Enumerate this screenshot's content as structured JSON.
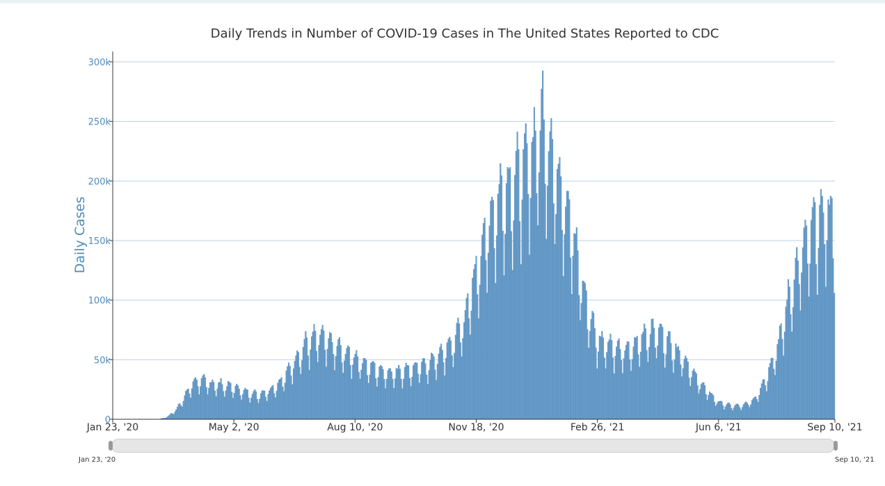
{
  "chart_data": {
    "type": "bar",
    "title": "Daily Trends in Number of COVID-19 Cases in The United States Reported to CDC",
    "ylabel": "Daily Cases",
    "xlabel": "",
    "ylim": [
      0,
      300000
    ],
    "x_start_date": "2020-01-23",
    "x_end_date": "2021-09-10",
    "yticks": [
      {
        "value": 0,
        "label": "0"
      },
      {
        "value": 50000,
        "label": "50k"
      },
      {
        "value": 100000,
        "label": "100k"
      },
      {
        "value": 150000,
        "label": "150k"
      },
      {
        "value": 200000,
        "label": "200k"
      },
      {
        "value": 250000,
        "label": "250k"
      },
      {
        "value": 300000,
        "label": "300k"
      }
    ],
    "xticks": [
      {
        "day": 0,
        "label": "Jan 23, '20"
      },
      {
        "day": 100,
        "label": "May 2, '20"
      },
      {
        "day": 200,
        "label": "Aug 10, '20"
      },
      {
        "day": 300,
        "label": "Nov 18, '20"
      },
      {
        "day": 400,
        "label": "Feb 26, '21"
      },
      {
        "day": 500,
        "label": "Jun 6, '21"
      },
      {
        "day": 596,
        "label": "Sep 10, '21"
      }
    ],
    "trend_anchors": [
      [
        0,
        0
      ],
      [
        38,
        0
      ],
      [
        45,
        2000
      ],
      [
        52,
        8000
      ],
      [
        60,
        20000
      ],
      [
        66,
        30000
      ],
      [
        72,
        32000
      ],
      [
        80,
        29000
      ],
      [
        90,
        28000
      ],
      [
        100,
        26000
      ],
      [
        110,
        22000
      ],
      [
        120,
        20000
      ],
      [
        130,
        24000
      ],
      [
        140,
        32000
      ],
      [
        150,
        48000
      ],
      [
        160,
        62000
      ],
      [
        170,
        68000
      ],
      [
        180,
        62000
      ],
      [
        190,
        55000
      ],
      [
        200,
        50000
      ],
      [
        210,
        44000
      ],
      [
        220,
        40000
      ],
      [
        230,
        38000
      ],
      [
        240,
        40000
      ],
      [
        250,
        42000
      ],
      [
        260,
        45000
      ],
      [
        270,
        52000
      ],
      [
        280,
        62000
      ],
      [
        290,
        80000
      ],
      [
        300,
        120000
      ],
      [
        310,
        158000
      ],
      [
        320,
        182000
      ],
      [
        330,
        192000
      ],
      [
        340,
        205000
      ],
      [
        350,
        225000
      ],
      [
        355,
        245000
      ],
      [
        360,
        222000
      ],
      [
        370,
        192000
      ],
      [
        380,
        150000
      ],
      [
        390,
        98000
      ],
      [
        400,
        65000
      ],
      [
        410,
        62000
      ],
      [
        420,
        55000
      ],
      [
        430,
        58000
      ],
      [
        440,
        70000
      ],
      [
        450,
        72000
      ],
      [
        460,
        62000
      ],
      [
        470,
        52000
      ],
      [
        480,
        36000
      ],
      [
        490,
        24000
      ],
      [
        500,
        14000
      ],
      [
        510,
        11000
      ],
      [
        520,
        11000
      ],
      [
        530,
        16000
      ],
      [
        540,
        35000
      ],
      [
        550,
        62000
      ],
      [
        560,
        105000
      ],
      [
        570,
        138000
      ],
      [
        580,
        158000
      ],
      [
        590,
        168000
      ],
      [
        596,
        162000
      ]
    ],
    "weekly_factor": [
      0.86,
      0.68,
      0.88,
      1.06,
      1.13,
      1.17,
      1.1
    ],
    "noise_amplitude": 0.05
  },
  "navigator": {
    "start_label": "Jan 23, '20",
    "end_label": "Sep 10, '21"
  },
  "colors": {
    "bar": "#6a9fcc",
    "bar_edge": "#4a7fae",
    "grid": "#b8d3ea",
    "axis": "#333333"
  }
}
